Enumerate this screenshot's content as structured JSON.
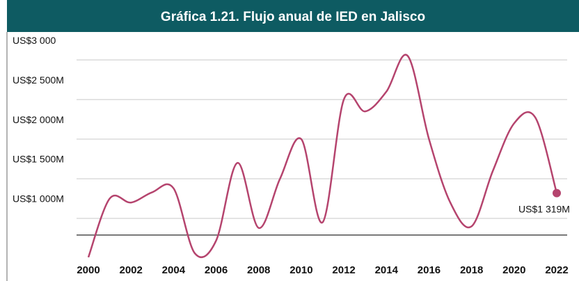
{
  "chart_data": {
    "type": "line",
    "title": "Gráfica 1.21. Flujo anual de IED en Jalisco",
    "x": [
      2000,
      2001,
      2002,
      2003,
      2004,
      2005,
      2006,
      2007,
      2008,
      2009,
      2010,
      2011,
      2012,
      2013,
      2014,
      2015,
      2016,
      2017,
      2018,
      2019,
      2020,
      2021,
      2022
    ],
    "series": [
      {
        "name": "Flujo anual de IED",
        "color": "#b5446e",
        "values": [
          510,
          1250,
          1200,
          1330,
          1380,
          560,
          720,
          1700,
          880,
          1500,
          2000,
          950,
          2500,
          2350,
          2600,
          3050,
          2000,
          1200,
          900,
          1600,
          2200,
          2270,
          1319
        ]
      }
    ],
    "end_label": "US$1 319M",
    "xlim": [
      2000,
      2022
    ],
    "xticks": [
      2000,
      2002,
      2004,
      2006,
      2008,
      2010,
      2012,
      2014,
      2016,
      2018,
      2020,
      2022
    ],
    "ylim": [
      465,
      3185
    ],
    "yticks": [
      {
        "value": 1000,
        "label": "US$1 000M"
      },
      {
        "value": 1500,
        "label": "US$1 500M"
      },
      {
        "value": 2000,
        "label": "US$2 000M"
      },
      {
        "value": 2500,
        "label": "US$2 500M"
      },
      {
        "value": 3000,
        "label": "US$3 000"
      }
    ],
    "reference_line": 790,
    "grid": true
  }
}
